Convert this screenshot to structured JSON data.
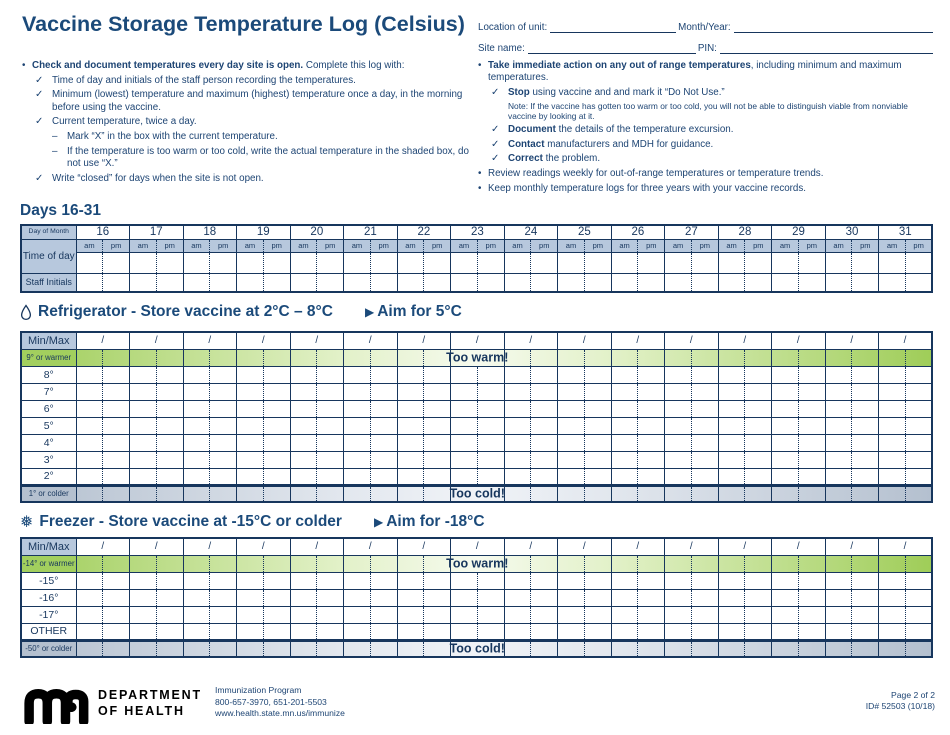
{
  "colors": {
    "navy": "#17365d",
    "textblue": "#1d4473",
    "titleblue": "#1b4a7a",
    "lightblue": "#b7c8dd",
    "green": "#9fcd58",
    "greenlabel": "#a2cf5e",
    "greenfade": "#f6faee",
    "gray": "#b4c0cf",
    "grayfade": "#f0f3f7"
  },
  "header": {
    "title": "Vaccine Storage Temperature Log (Celsius)"
  },
  "form_fields": [
    {
      "label": "Location of unit:",
      "value": ""
    },
    {
      "label": "Month/Year:",
      "value": ""
    },
    {
      "label": "Site name:",
      "value": ""
    },
    {
      "label": "PIN:",
      "value": ""
    }
  ],
  "instructions_left": [
    {
      "m": "•",
      "lvl": 1,
      "b": "Check and document temperatures every day site is open.",
      "t": " Complete this log with:"
    },
    {
      "m": "✓",
      "lvl": 2,
      "t": "Time of day and initials of the staff person recording the temperatures."
    },
    {
      "m": "✓",
      "lvl": 2,
      "t": "Minimum (lowest) temperature and maximum (highest) temperature once a day, in the morning before using the vaccine."
    },
    {
      "m": "✓",
      "lvl": 2,
      "t": "Current temperature, twice a day."
    },
    {
      "m": "–",
      "lvl": 3,
      "t": "Mark “X” in the box with the current temperature."
    },
    {
      "m": "–",
      "lvl": 3,
      "t": "If the temperature is too warm or too cold, write the actual temperature in the shaded box, do not use “X.”"
    },
    {
      "m": "✓",
      "lvl": 2,
      "t": "Write “closed” for days when the site is not open."
    }
  ],
  "instructions_right": [
    {
      "m": "•",
      "lvl": 1,
      "b": "Take immediate action on any out of range temperatures",
      "t": ", including minimum and maximum temperatures."
    },
    {
      "m": "✓",
      "lvl": 2,
      "b": "Stop",
      "t": " using vaccine and and mark it “Do Not Use.”",
      "n": "Note: If the vaccine has gotten too warm or too cold, you will not be able to distinguish viable from nonviable vaccine by looking at it."
    },
    {
      "m": "✓",
      "lvl": 2,
      "b": "Document",
      "t": " the details of the temperature excursion."
    },
    {
      "m": "✓",
      "lvl": 2,
      "b": "Contact",
      "t": " manufacturers and MDH for guidance."
    },
    {
      "m": "✓",
      "lvl": 2,
      "b": "Correct",
      "t": " the problem."
    },
    {
      "m": "•",
      "lvl": 1,
      "t": "Review readings weekly for out-of-range temperatures or temperature trends."
    },
    {
      "m": "•",
      "lvl": 1,
      "t": "Keep monthly temperature logs for three years with your vaccine records."
    }
  ],
  "days_section": {
    "heading": "Days 16-31",
    "day_of_month_label": "Day of Month",
    "time_of_day_label": "Time of day",
    "staff_initials_label": "Staff Initials",
    "am": "am",
    "pm": "pm",
    "days": [
      "16",
      "17",
      "18",
      "19",
      "20",
      "21",
      "22",
      "23",
      "24",
      "25",
      "26",
      "27",
      "28",
      "29",
      "30",
      "31"
    ]
  },
  "refrigerator": {
    "icon": "droplet-icon",
    "heading": "Refrigerator - Store vaccine at 2°C – 8°C",
    "aim_icon": "triangle-right-icon",
    "aim": "Aim for 5°C",
    "minmax_label": "Min/Max",
    "slash": "/",
    "too_warm": "Too warm!",
    "too_cold": "Too cold!",
    "rows": [
      {
        "label": "9° or warmer",
        "zone": "warm"
      },
      {
        "label": "8°"
      },
      {
        "label": "7°"
      },
      {
        "label": "6°"
      },
      {
        "label": "5°"
      },
      {
        "label": "4°"
      },
      {
        "label": "3°"
      },
      {
        "label": "2°"
      },
      {
        "label": "1° or colder",
        "zone": "cold"
      }
    ]
  },
  "freezer": {
    "icon": "snowflake-icon",
    "heading": "Freezer - Store vaccine at -15°C or colder",
    "aim_icon": "triangle-right-icon",
    "aim": "Aim for -18°C",
    "minmax_label": "Min/Max",
    "slash": "/",
    "too_warm": "Too warm!",
    "too_cold": "Too cold!",
    "rows": [
      {
        "label": "-14° or warmer",
        "zone": "warm"
      },
      {
        "label": "-15°"
      },
      {
        "label": "-16°"
      },
      {
        "label": "-17°"
      },
      {
        "label": "OTHER"
      },
      {
        "label": "-50° or colder",
        "zone": "cold"
      }
    ]
  },
  "footer": {
    "logo": "mn-logo",
    "dept": [
      "DEPARTMENT",
      "OF HEALTH"
    ],
    "program": "Immunization Program",
    "phone": "800-657-3970, 651-201-5503",
    "website": "www.health.state.mn.us/immunize",
    "page": "Page 2 of 2",
    "doc_id": "ID# 52503 (10/18)"
  }
}
